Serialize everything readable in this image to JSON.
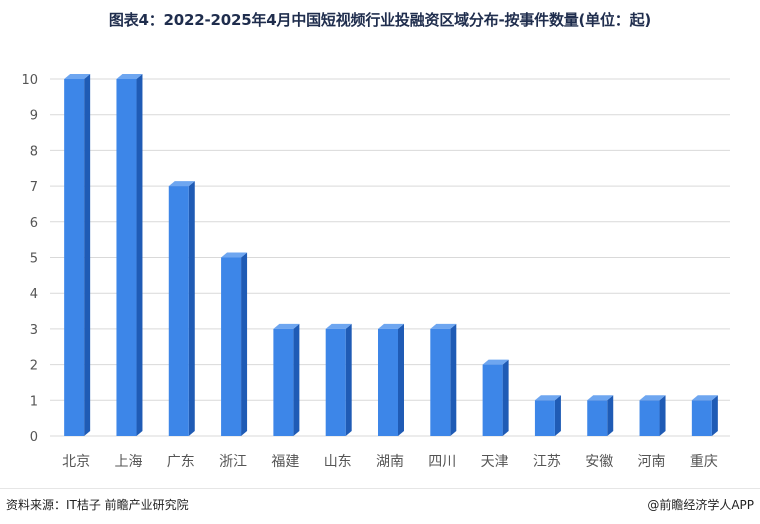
{
  "title": "图表4：2022-2025年4月中国短视频行业投融资区域分布-按事件数量(单位：起)",
  "footer": {
    "source": "资料来源：IT桔子 前瞻产业研究院",
    "brand": "@前瞻经济学人APP"
  },
  "colors": {
    "bar_front": "#3d86e8",
    "bar_side": "#1f5bb5",
    "bar_top": "#6ea6f0",
    "grid": "#d9d9d9",
    "axis_text": "#555555"
  },
  "chart_data": {
    "type": "bar",
    "title": "图表4：2022-2025年4月中国短视频行业投融资区域分布-按事件数量(单位：起)",
    "xlabel": "",
    "ylabel": "",
    "ylim": [
      0,
      10
    ],
    "yticks": [
      0,
      1,
      2,
      3,
      4,
      5,
      6,
      7,
      8,
      9,
      10
    ],
    "grid": true,
    "legend": "none",
    "categories": [
      "北京",
      "上海",
      "广东",
      "浙江",
      "福建",
      "山东",
      "湖南",
      "四川",
      "天津",
      "江苏",
      "安徽",
      "河南",
      "重庆"
    ],
    "values": [
      10,
      10,
      7,
      5,
      3,
      3,
      3,
      3,
      2,
      1,
      1,
      1,
      1
    ]
  }
}
